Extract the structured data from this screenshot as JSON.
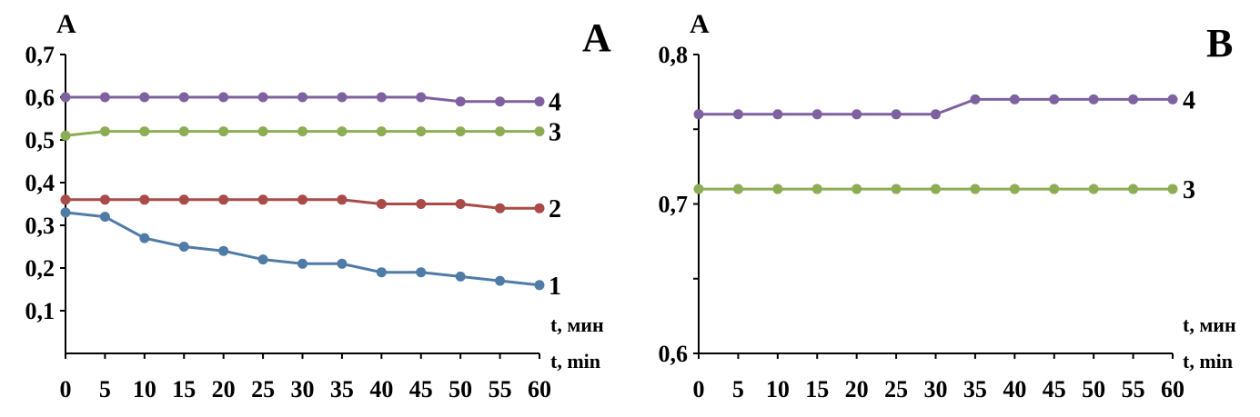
{
  "chart_data": [
    {
      "type": "line",
      "panel_label": "A",
      "ylabel": "A",
      "xlabel_lines": [
        "t, мин",
        "t, min"
      ],
      "x": [
        0,
        5,
        10,
        15,
        20,
        25,
        30,
        35,
        40,
        45,
        50,
        55,
        60
      ],
      "ylim": [
        0,
        0.7
      ],
      "yticks": [
        0.1,
        0.2,
        0.3,
        0.4,
        0.5,
        0.6,
        0.7
      ],
      "ytick_labels": [
        "0,1",
        "0,2",
        "0,3",
        "0,4",
        "0,5",
        "0,6",
        "0,7"
      ],
      "xtick_labels": [
        "0",
        "5",
        "10",
        "15",
        "20",
        "25",
        "30",
        "35",
        "40",
        "45",
        "50",
        "55",
        "60"
      ],
      "series": [
        {
          "name": "1",
          "color": "#4F7BA7",
          "values": [
            0.33,
            0.32,
            0.27,
            0.25,
            0.24,
            0.22,
            0.21,
            0.21,
            0.19,
            0.19,
            0.18,
            0.17,
            0.16
          ]
        },
        {
          "name": "2",
          "color": "#A94B48",
          "values": [
            0.36,
            0.36,
            0.36,
            0.36,
            0.36,
            0.36,
            0.36,
            0.36,
            0.35,
            0.35,
            0.35,
            0.34,
            0.34
          ]
        },
        {
          "name": "3",
          "color": "#8CAD54",
          "values": [
            0.51,
            0.52,
            0.52,
            0.52,
            0.52,
            0.52,
            0.52,
            0.52,
            0.52,
            0.52,
            0.52,
            0.52,
            0.52
          ]
        },
        {
          "name": "4",
          "color": "#7E62A0",
          "values": [
            0.6,
            0.6,
            0.6,
            0.6,
            0.6,
            0.6,
            0.6,
            0.6,
            0.6,
            0.6,
            0.59,
            0.59,
            0.59
          ]
        }
      ]
    },
    {
      "type": "line",
      "panel_label": "B",
      "ylabel": "A",
      "xlabel_lines": [
        "t, мин",
        "t, min"
      ],
      "x": [
        0,
        5,
        10,
        15,
        20,
        25,
        30,
        35,
        40,
        45,
        50,
        55,
        60
      ],
      "ylim": [
        0.6,
        0.8
      ],
      "yticks": [
        0.6,
        0.65,
        0.7,
        0.75,
        0.8
      ],
      "ytick_labels": [
        "0,6",
        "",
        "0,7",
        "",
        "0,8"
      ],
      "xtick_labels": [
        "0",
        "5",
        "10",
        "15",
        "20",
        "25",
        "30",
        "35",
        "40",
        "45",
        "50",
        "55",
        "60"
      ],
      "series": [
        {
          "name": "3",
          "color": "#8CAD54",
          "values": [
            0.71,
            0.71,
            0.71,
            0.71,
            0.71,
            0.71,
            0.71,
            0.71,
            0.71,
            0.71,
            0.71,
            0.71,
            0.71
          ]
        },
        {
          "name": "4",
          "color": "#7E62A0",
          "values": [
            0.76,
            0.76,
            0.76,
            0.76,
            0.76,
            0.76,
            0.76,
            0.77,
            0.77,
            0.77,
            0.77,
            0.77,
            0.77
          ]
        }
      ]
    }
  ]
}
